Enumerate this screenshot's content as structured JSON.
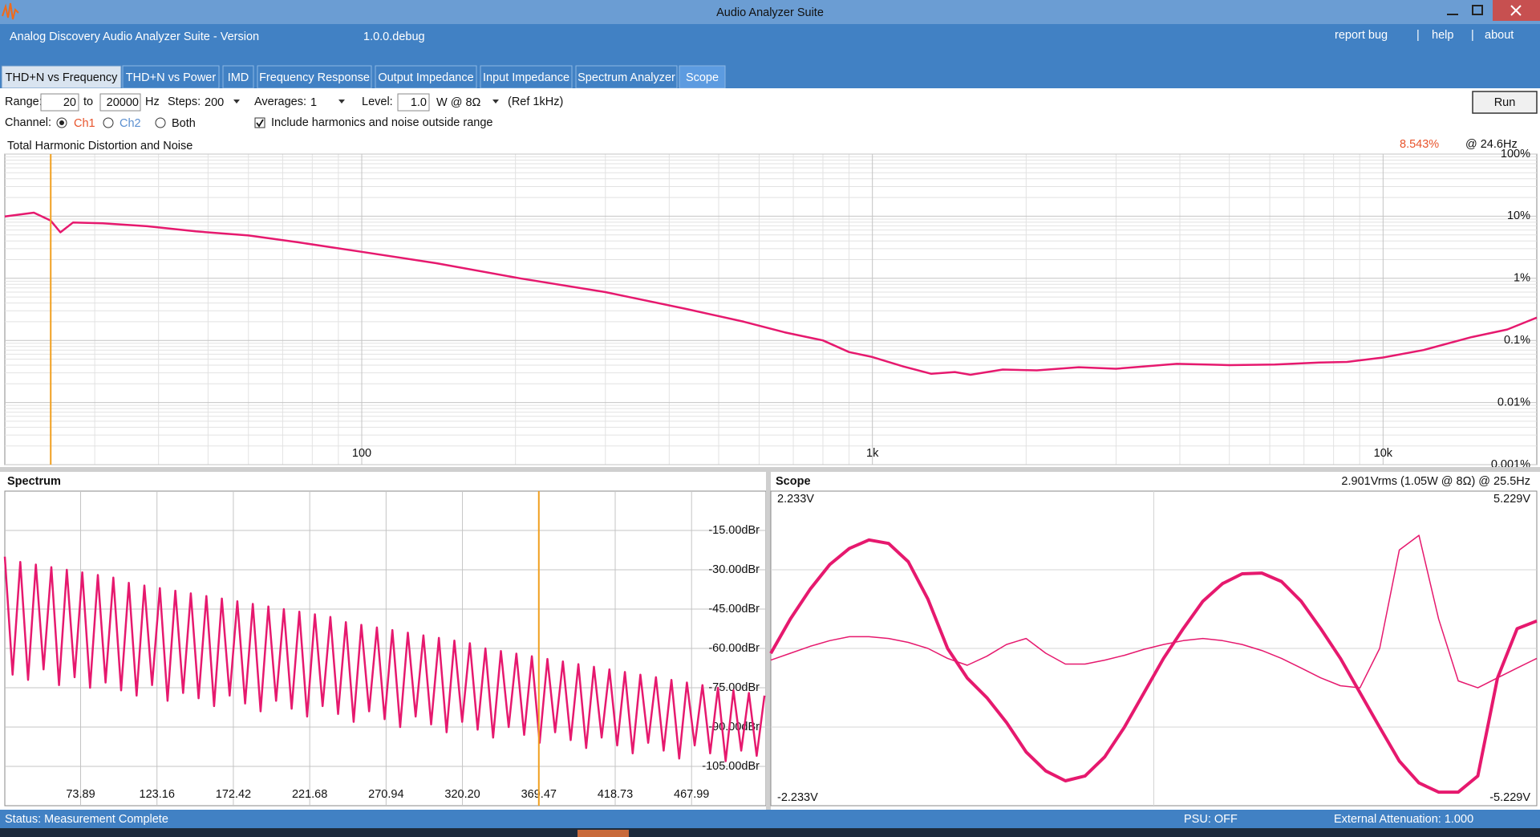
{
  "window": {
    "title": "Audio Analyzer Suite"
  },
  "header": {
    "title": "Analog Discovery Audio Analyzer Suite - Version",
    "version": "1.0.0.debug",
    "links": [
      "report bug",
      "help",
      "about"
    ],
    "separator": "|"
  },
  "tabs": [
    "THD+N vs Frequency",
    "THD+N vs Power",
    "IMD",
    "Frequency Response",
    "Output Impedance",
    "Input Impedance",
    "Spectrum Analyzer",
    "Scope"
  ],
  "controls": {
    "range_label": "Range:",
    "range_from": "20",
    "to": "to",
    "range_to": "20000",
    "hz": "Hz",
    "steps_label": "Steps:",
    "steps": "200",
    "averages_label": "Averages:",
    "averages": "1",
    "level_label": "Level:",
    "level": "1.0",
    "level_unit": "W @ 8Ω",
    "ref": "(Ref 1kHz)",
    "run": "Run",
    "channel_label": "Channel:",
    "channels": [
      "Ch1",
      "Ch2",
      "Both"
    ],
    "include": "Include harmonics and noise outside range"
  },
  "charts": [
    {
      "type": "line",
      "title": "Total Harmonic Distortion and Noise",
      "readout": "8.543%",
      "readout_at": "@ 24.6Hz",
      "x": [
        20,
        22.8,
        24.6,
        25.7,
        27.2,
        31.1,
        38,
        47.3,
        60,
        75,
        100,
        140,
        204,
        300,
        433,
        560,
        673,
        800,
        900,
        1000,
        1150,
        1304,
        1450,
        1556,
        1800,
        2100,
        2535,
        3000,
        3945,
        5000,
        6138,
        7500,
        8500,
        10000,
        12000,
        14900,
        17500,
        20000
      ],
      "values": [
        9.9,
        11.4,
        8.5,
        5.5,
        7.9,
        7.7,
        6.9,
        5.7,
        4.9,
        3.8,
        2.67,
        1.75,
        1.0,
        0.6,
        0.32,
        0.2,
        0.135,
        0.1,
        0.065,
        0.054,
        0.038,
        0.029,
        0.031,
        0.028,
        0.034,
        0.033,
        0.037,
        0.035,
        0.042,
        0.04,
        0.041,
        0.044,
        0.045,
        0.053,
        0.07,
        0.113,
        0.15,
        0.233
      ],
      "color": "#e6196e",
      "xlim": [
        20,
        20000
      ],
      "ylim": [
        0.001,
        100
      ],
      "xlog": true,
      "ylog": true,
      "xticks": [
        100,
        {
          "value": 1000,
          "label": "1k"
        },
        {
          "value": 10000,
          "label": "10k"
        }
      ],
      "yticks": [
        {
          "value": 100,
          "label": "100%"
        },
        {
          "value": 10,
          "label": "10%"
        },
        {
          "value": 1,
          "label": "1%"
        },
        {
          "value": 0.1,
          "label": "0.1%"
        },
        {
          "value": 0.01,
          "label": "0.01%"
        },
        {
          "value": 0.001,
          "label": "0.001%"
        }
      ],
      "cursor": 24.6,
      "cursor_color": "#f0a020",
      "grid": true
    },
    {
      "type": "line",
      "title": "Spectrum",
      "x": [
        25,
        30,
        35,
        40,
        45,
        50,
        55,
        60,
        65,
        70,
        75,
        80,
        85,
        90,
        95,
        100,
        105,
        110,
        115,
        120,
        125,
        130,
        135,
        140,
        145,
        150,
        155,
        160,
        165,
        170,
        175,
        180,
        185,
        190,
        195,
        200,
        205,
        210,
        215,
        220,
        225,
        230,
        235,
        240,
        245,
        250,
        255,
        260,
        265,
        270,
        275,
        280,
        285,
        290,
        295,
        300,
        305,
        310,
        315,
        320,
        325,
        330,
        335,
        340,
        345,
        350,
        355,
        360,
        365,
        370,
        375,
        380,
        385,
        390,
        395,
        400,
        405,
        410,
        415,
        420,
        425,
        430,
        435,
        440,
        445,
        450,
        455,
        460,
        465,
        470,
        475,
        480,
        485,
        490,
        495,
        500,
        505,
        510,
        515
      ],
      "values": [
        -25,
        -70,
        -27,
        -72,
        -28,
        -68,
        -29,
        -74,
        -30,
        -71,
        -31,
        -75,
        -32,
        -73,
        -33,
        -76,
        -35,
        -78,
        -36,
        -74,
        -37,
        -80,
        -38,
        -77,
        -39,
        -79,
        -40,
        -82,
        -41,
        -78,
        -42,
        -81,
        -43,
        -84,
        -44,
        -80,
        -45,
        -83,
        -46,
        -86,
        -47,
        -82,
        -48,
        -85,
        -50,
        -88,
        -51,
        -84,
        -52,
        -87,
        -53,
        -90,
        -54,
        -86,
        -55,
        -89,
        -56,
        -92,
        -57,
        -88,
        -58,
        -91,
        -60,
        -94,
        -61,
        -90,
        -62,
        -93,
        -63,
        -96,
        -64,
        -92,
        -65,
        -95,
        -66,
        -98,
        -67,
        -94,
        -68,
        -97,
        -69,
        -100,
        -70,
        -96,
        -71,
        -99,
        -72,
        -102,
        -73,
        -97,
        -74,
        -100,
        -75,
        -103,
        -76,
        -99,
        -77,
        -101,
        -78
      ],
      "color": "#e6196e",
      "xlim": [
        25,
        516
      ],
      "ylim": [
        -120,
        0
      ],
      "xticks": [
        73.89,
        123.16,
        172.42,
        221.68,
        270.94,
        {
          "value": 320.2,
          "label": "320.20"
        },
        369.47,
        418.73,
        467.99
      ],
      "yticks": [
        {
          "value": -15,
          "label": "-15.00dBr"
        },
        {
          "value": -30,
          "label": "-30.00dBr"
        },
        {
          "value": -45,
          "label": "-45.00dBr"
        },
        {
          "value": -60,
          "label": "-60.00dBr"
        },
        {
          "value": -75,
          "label": "-75.00dBr"
        },
        {
          "value": -90,
          "label": "-90.00dBr"
        },
        {
          "value": -105,
          "label": "-105.00dBr"
        }
      ],
      "cursor": 369.47,
      "cursor_color": "#f0a020",
      "grid": true
    },
    {
      "type": "line",
      "title": "Scope",
      "readout": "2.901Vrms (1.05W @ 8Ω) @ 25.5Hz",
      "ylim": [
        -2.233,
        2.233
      ],
      "y2lim": [
        -5.229,
        5.229
      ],
      "yticks": [
        {
          "value": 2.233,
          "label": "2.233V"
        },
        {
          "value": -2.233,
          "label": "-2.233V"
        }
      ],
      "y2ticks": [
        {
          "value": 5.229,
          "label": "5.229V"
        },
        {
          "value": -5.229,
          "label": "-5.229V"
        }
      ],
      "series": [
        {
          "color": "#e6196e",
          "line_width": 4,
          "values": [
            -0.07,
            0.42,
            0.84,
            1.19,
            1.42,
            1.54,
            1.49,
            1.23,
            0.7,
            0,
            -0.42,
            -0.7,
            -1.05,
            -1.47,
            -1.74,
            -1.88,
            -1.81,
            -1.54,
            -1.12,
            -0.63,
            -0.14,
            0.28,
            0.67,
            0.92,
            1.06,
            1.07,
            0.95,
            0.67,
            0.28,
            -0.14,
            -0.63,
            -1.12,
            -1.6,
            -1.91,
            -2.04,
            -2.04,
            -1.81,
            -0.42,
            0.28,
            0.39
          ]
        },
        {
          "color": "#e6196e",
          "line_width": 1.5,
          "axis": "y2",
          "values": [
            -0.39,
            -0.16,
            0.07,
            0.26,
            0.39,
            0.39,
            0.33,
            0.2,
            0,
            -0.33,
            -0.56,
            -0.26,
            0.13,
            0.33,
            -0.16,
            -0.52,
            -0.52,
            -0.39,
            -0.23,
            -0.03,
            0.13,
            0.26,
            0.33,
            0.26,
            0.13,
            -0.07,
            -0.33,
            -0.65,
            -0.98,
            -1.24,
            -1.31,
            0,
            3.27,
            3.76,
            0.98,
            -1.08,
            -1.31,
            -0.98,
            -0.65,
            -0.33
          ]
        }
      ]
    }
  ],
  "status": {
    "text": "Status: Measurement Complete",
    "psu": "PSU: OFF",
    "attenuation": "External Attenuation: 1.000"
  }
}
